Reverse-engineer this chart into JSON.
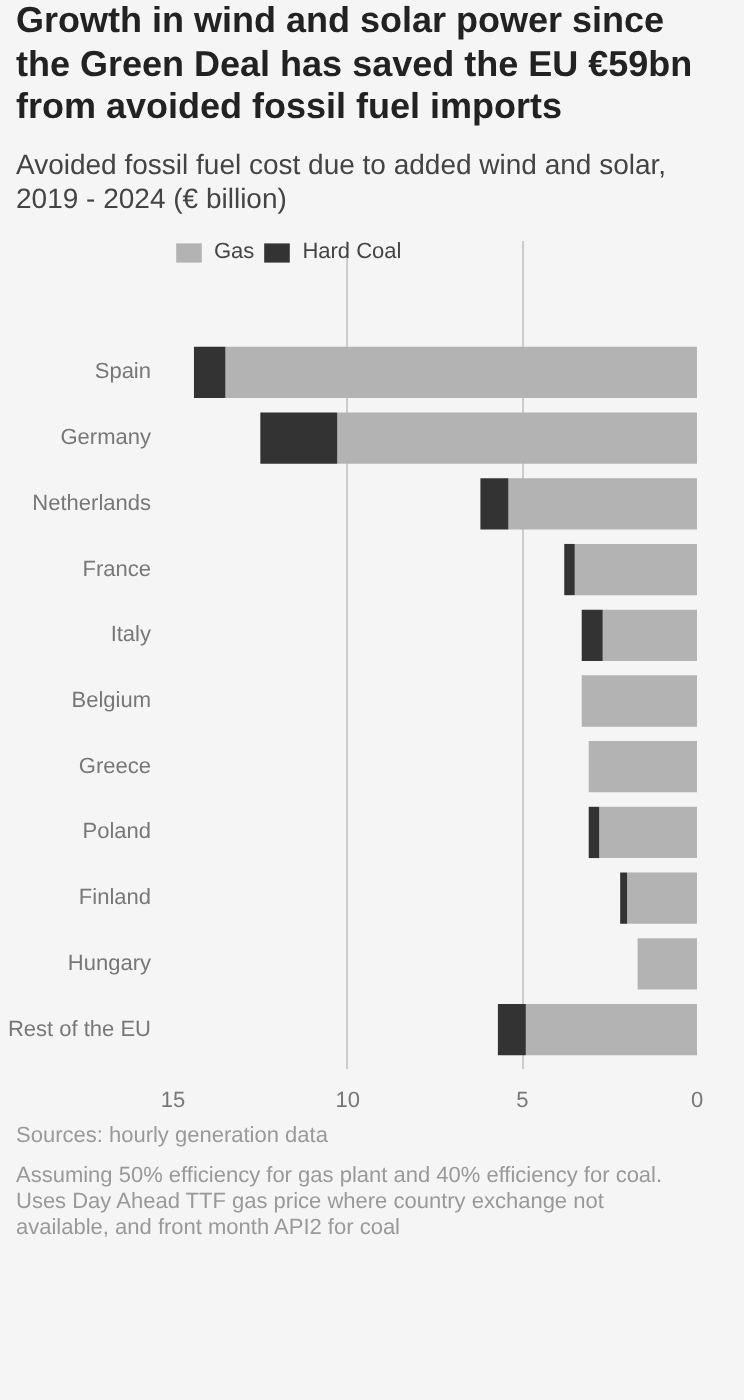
{
  "chart_data": {
    "type": "bar",
    "orientation": "horizontal",
    "stacked": true,
    "title": "Growth in wind and solar power since the Green Deal has saved the EU €59bn from avoided fossil fuel imports",
    "subtitle": "Avoided fossil fuel cost due to added wind and solar, 2019 - 2024 (€ billion)",
    "categories": [
      "Spain",
      "Germany",
      "Netherlands",
      "France",
      "Italy",
      "Belgium",
      "Greece",
      "Poland",
      "Finland",
      "Hungary",
      "Rest of the EU"
    ],
    "series": [
      {
        "name": "Gas",
        "color": "#b3b3b3",
        "values": [
          13.5,
          10.3,
          5.4,
          3.5,
          2.7,
          3.3,
          3.1,
          2.8,
          2.0,
          1.7,
          4.9
        ]
      },
      {
        "name": "Hard Coal",
        "color": "#333333",
        "values": [
          0.9,
          2.2,
          0.8,
          0.3,
          0.6,
          null,
          null,
          0.3,
          0.2,
          null,
          0.8
        ]
      }
    ],
    "xlim": [
      15,
      0
    ],
    "xticks": [
      15,
      10,
      5,
      0
    ],
    "grid": "x",
    "legend": "top left",
    "annotations": [
      "Sources: hourly generation data",
      "Assuming 50% efficiency for gas plant and 40% efficiency for coal. Uses Day Ahead TTF gas price where country exchange not available, and front month API2 for coal"
    ]
  }
}
